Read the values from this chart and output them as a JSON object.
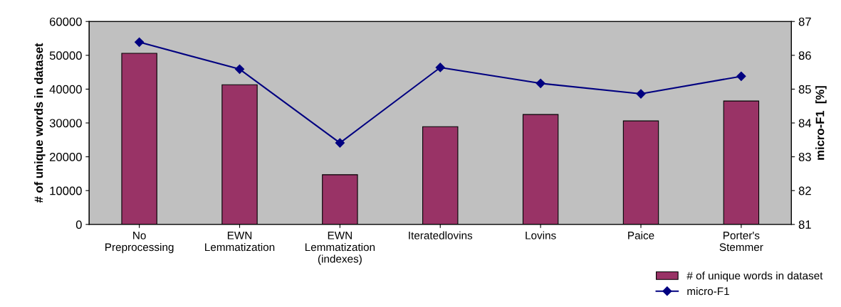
{
  "chart_data": {
    "type": "bar",
    "categories": [
      "No\nPreprocessing",
      "EWN\nLemmatization",
      "EWN\nLemmatization\n(indexes)",
      "Iteratedlovins",
      "Lovins",
      "Paice",
      "Porter's\nStemmer"
    ],
    "series": [
      {
        "name": "# of unique words in dataset",
        "color": "#993366",
        "values": [
          50600,
          41300,
          14700,
          28900,
          32500,
          30600,
          36500
        ]
      },
      {
        "name": "micro-F1",
        "color": "#000080",
        "type": "line",
        "axis": "y2",
        "marker": "diamond",
        "values": [
          86.39,
          85.59,
          83.41,
          85.64,
          85.17,
          84.86,
          85.38
        ]
      }
    ],
    "ylabel": "# of unique words in dataset",
    "y2label": "micro-F1  [%]",
    "ylim": [
      0,
      60000
    ],
    "yticks": [
      0,
      10000,
      20000,
      30000,
      40000,
      50000,
      60000
    ],
    "y2lim": [
      81,
      87
    ],
    "y2ticks": [
      81,
      82,
      83,
      84,
      85,
      86,
      87
    ],
    "grid": false,
    "legend": "bottom right"
  }
}
